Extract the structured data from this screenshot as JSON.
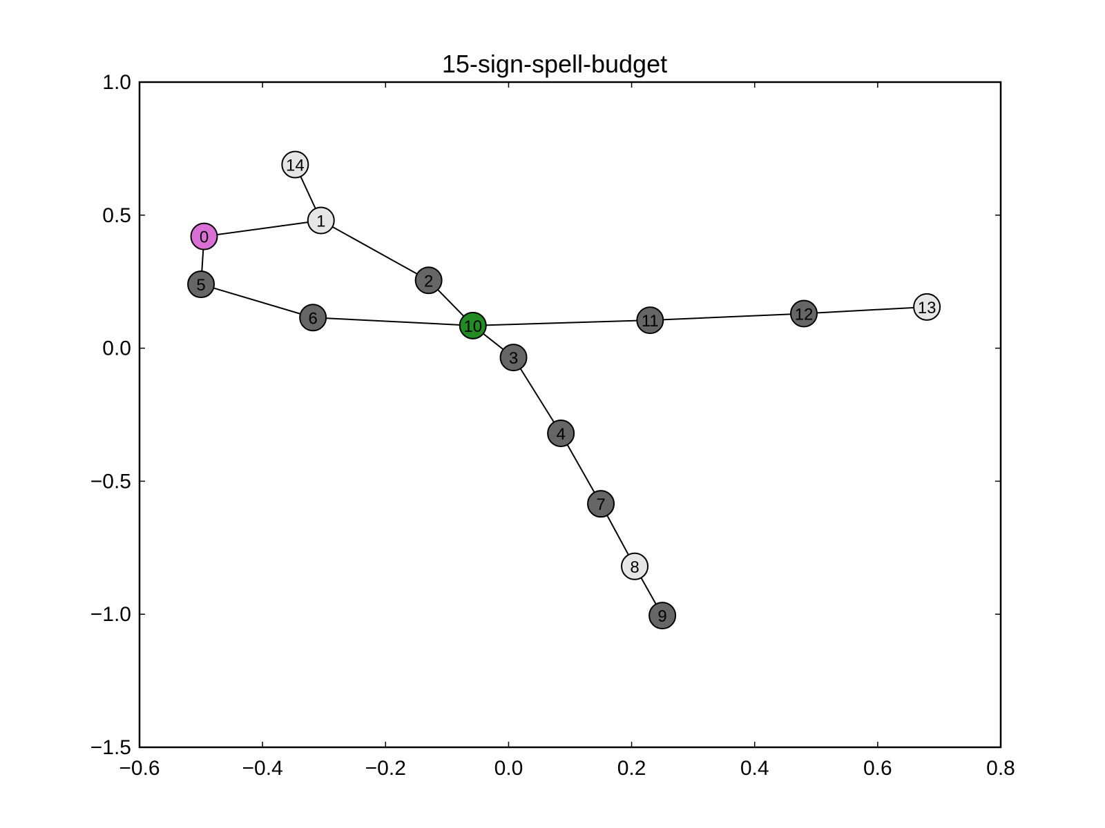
{
  "title": "15-sign-spell-budget",
  "chart_data": {
    "type": "scatter",
    "title": "15-sign-spell-budget",
    "xlim": [
      -0.6,
      0.8
    ],
    "ylim": [
      -1.5,
      1.0
    ],
    "x_ticks": [
      -0.6,
      -0.4,
      -0.2,
      0.0,
      0.2,
      0.4,
      0.6,
      0.8
    ],
    "x_tick_labels": [
      "−0.6",
      "−0.4",
      "−0.2",
      "0.0",
      "0.2",
      "0.4",
      "0.6",
      "0.8"
    ],
    "y_ticks": [
      1.0,
      0.5,
      0.0,
      -0.5,
      -1.0,
      -1.5
    ],
    "y_tick_labels": [
      "1.0",
      "0.5",
      "0.0",
      "−0.5",
      "−1.0",
      "−1.5"
    ],
    "grid": false,
    "nodes": [
      {
        "id": "0",
        "x": -0.495,
        "y": 0.42,
        "color": "#da70d6"
      },
      {
        "id": "1",
        "x": -0.305,
        "y": 0.48,
        "color": "#e6e6e6"
      },
      {
        "id": "2",
        "x": -0.13,
        "y": 0.255,
        "color": "#666666"
      },
      {
        "id": "3",
        "x": 0.008,
        "y": -0.035,
        "color": "#666666"
      },
      {
        "id": "4",
        "x": 0.085,
        "y": -0.32,
        "color": "#666666"
      },
      {
        "id": "5",
        "x": -0.5,
        "y": 0.24,
        "color": "#666666"
      },
      {
        "id": "6",
        "x": -0.318,
        "y": 0.115,
        "color": "#666666"
      },
      {
        "id": "7",
        "x": 0.15,
        "y": -0.585,
        "color": "#666666"
      },
      {
        "id": "8",
        "x": 0.205,
        "y": -0.82,
        "color": "#e6e6e6"
      },
      {
        "id": "9",
        "x": 0.25,
        "y": -1.005,
        "color": "#666666"
      },
      {
        "id": "10",
        "x": -0.058,
        "y": 0.085,
        "color": "#228b22"
      },
      {
        "id": "11",
        "x": 0.23,
        "y": 0.105,
        "color": "#666666"
      },
      {
        "id": "12",
        "x": 0.48,
        "y": 0.13,
        "color": "#666666"
      },
      {
        "id": "13",
        "x": 0.68,
        "y": 0.155,
        "color": "#e6e6e6"
      },
      {
        "id": "14",
        "x": -0.347,
        "y": 0.69,
        "color": "#e6e6e6"
      }
    ],
    "edges": [
      [
        "14",
        "1"
      ],
      [
        "1",
        "0"
      ],
      [
        "0",
        "5"
      ],
      [
        "5",
        "6"
      ],
      [
        "6",
        "10"
      ],
      [
        "1",
        "2"
      ],
      [
        "2",
        "10"
      ],
      [
        "10",
        "3"
      ],
      [
        "3",
        "4"
      ],
      [
        "4",
        "7"
      ],
      [
        "7",
        "8"
      ],
      [
        "8",
        "9"
      ],
      [
        "10",
        "11"
      ],
      [
        "11",
        "12"
      ],
      [
        "12",
        "13"
      ]
    ]
  }
}
